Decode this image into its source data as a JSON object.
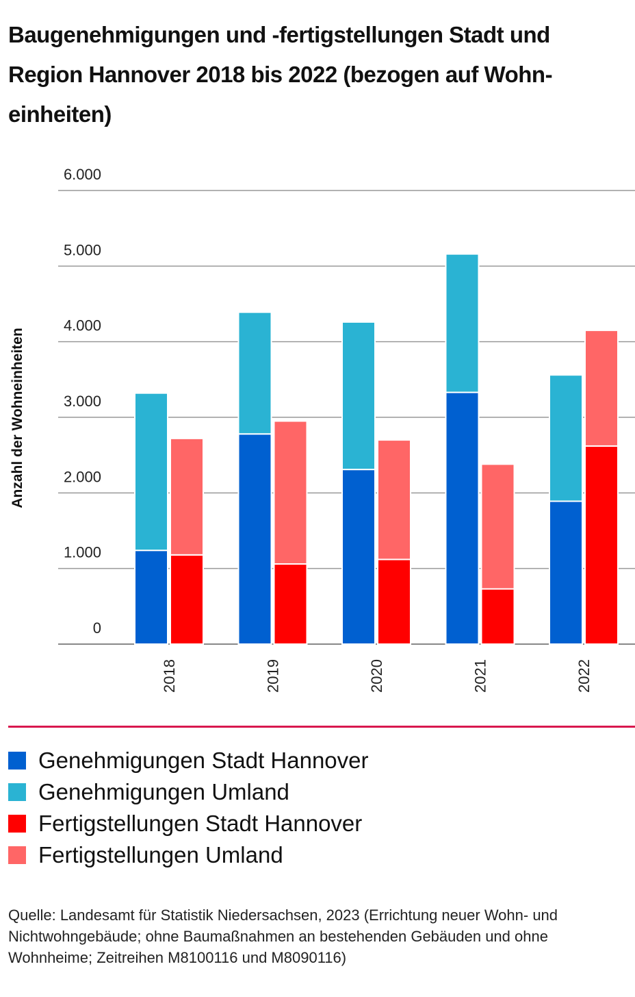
{
  "chart_data": {
    "type": "bar",
    "title": "Baugenehmigungen und -fertigstellungen Stadt und Region Hannover 2018 bis 2022 (bezogen auf Wohn­einheiten)",
    "y_label": "Anzahl der Wohneinheiten",
    "categories": [
      "2018",
      "2019",
      "2020",
      "2021",
      "2022"
    ],
    "series": [
      {
        "name": "Genehmigungen Stadt Hannover",
        "color": "#0060d0",
        "values": [
          1240,
          2780,
          2310,
          3330,
          1890
        ]
      },
      {
        "name": "Genehmigungen Umland",
        "color": "#2ab3d3",
        "values": [
          2080,
          1610,
          1950,
          1830,
          1670
        ]
      },
      {
        "name": "Fertigstellungen Stadt Hannover",
        "color": "#ff0000",
        "values": [
          1180,
          1060,
          1120,
          730,
          2620
        ]
      },
      {
        "name": "Fertigstellungen Umland",
        "color": "#ff6666",
        "values": [
          1540,
          1890,
          1580,
          1650,
          1530
        ]
      }
    ],
    "ylim": [
      0,
      6000
    ],
    "yticks": [
      0,
      {
        "value": 1000,
        "label": "1.000"
      },
      {
        "value": 2000,
        "label": "2.000"
      },
      {
        "value": 3000,
        "label": "3.000"
      },
      {
        "value": 4000,
        "label": "4.000"
      },
      {
        "value": 5000,
        "label": "5.000"
      },
      {
        "value": 6000,
        "label": "6.000"
      }
    ],
    "grid": true,
    "source": "Quelle: Landesamt für Statistik Niedersachsen, 2023 (Errichtung neuer Wohn- und Nichtwohngebäude; ohne Baumaßnahmen an bestehenden Gebäuden und ohne Wohnheime; Zeitreihen M8100116 und M8090116)"
  }
}
